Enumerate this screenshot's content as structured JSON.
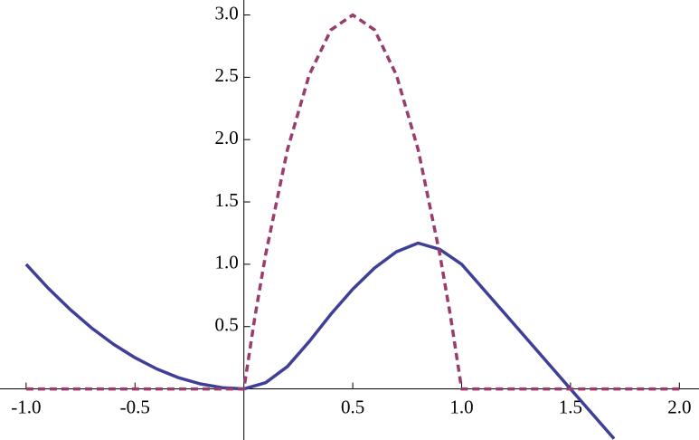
{
  "chart_data": {
    "type": "line",
    "xlim": [
      -1.12,
      2.09
    ],
    "ylim": [
      -0.41,
      3.12
    ],
    "xticks": [
      {
        "value": -1,
        "label": "-1.0"
      },
      -0.5,
      0.5,
      {
        "value": 1,
        "label": "1.0"
      },
      1.5,
      {
        "value": 2,
        "label": "2.0"
      }
    ],
    "yticks": [
      0.5,
      {
        "value": 1,
        "label": "1.0"
      },
      1.5,
      {
        "value": 2,
        "label": "2.0"
      },
      2.5,
      {
        "value": 3,
        "label": "3.0"
      }
    ],
    "series": [
      {
        "color": "#3f3f98",
        "dashed": false,
        "x": [
          -1,
          -0.9,
          -0.8,
          -0.7,
          -0.6,
          -0.5,
          -0.4,
          -0.3,
          -0.2,
          -0.1,
          0,
          0.1,
          0.2,
          0.3,
          0.4,
          0.5,
          0.6,
          0.7,
          0.8,
          0.9,
          1.0,
          1.1,
          1.2,
          1.3,
          1.4,
          1.5,
          1.6,
          1.7
        ],
        "values": [
          1,
          0.81,
          0.64,
          0.49,
          0.36,
          0.25,
          0.16,
          0.09,
          0.04,
          0.01,
          0,
          0.05,
          0.18,
          0.38,
          0.6,
          0.8,
          0.97,
          1.1,
          1.17,
          1.12,
          1.0,
          0.8,
          0.6,
          0.4,
          0.2,
          0,
          -0.2,
          -0.4
        ]
      },
      {
        "color": "#993c6e",
        "dashed": true,
        "x": [
          -1,
          0,
          0.05,
          0.1,
          0.2,
          0.3,
          0.4,
          0.5,
          0.6,
          0.7,
          0.8,
          0.9,
          0.95,
          1.0,
          2.0
        ],
        "values": [
          0,
          0,
          0.57,
          1.08,
          1.92,
          2.52,
          2.88,
          3,
          2.88,
          2.52,
          1.92,
          1.08,
          0.57,
          0,
          0
        ]
      }
    ]
  }
}
